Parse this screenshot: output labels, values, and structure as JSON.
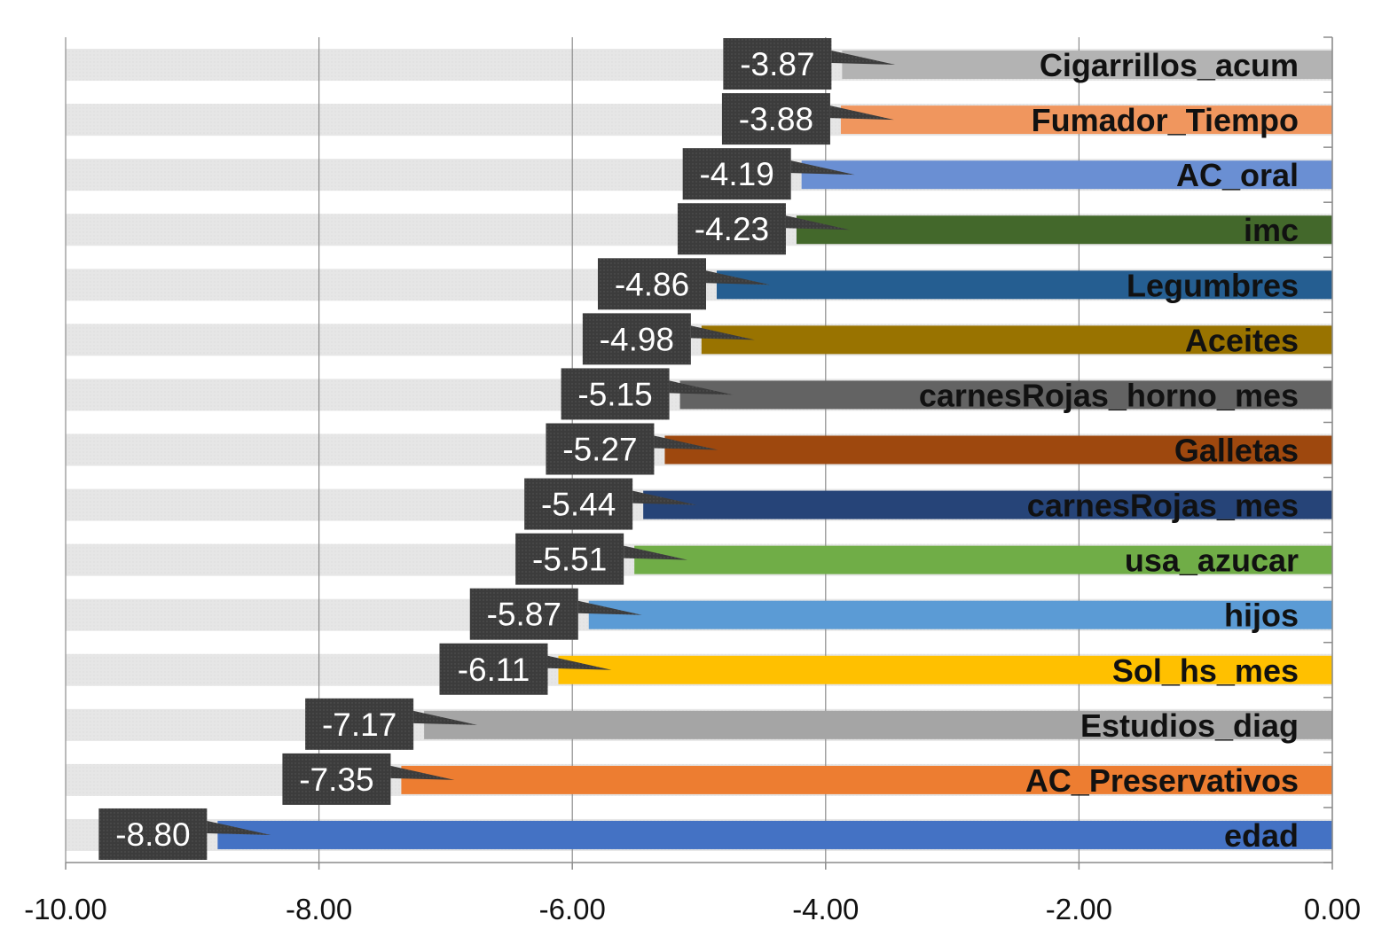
{
  "chart_data": {
    "type": "bar",
    "orientation": "horizontal",
    "title": "",
    "xlabel": "",
    "ylabel": "",
    "xlim": [
      -10,
      0
    ],
    "x_ticks": [
      "-10.00",
      "-8.00",
      "-6.00",
      "-4.00",
      "-2.00",
      "0.00"
    ],
    "grid": true,
    "legend": "none",
    "categories": [
      "Cigarrillos_acum",
      "Fumador_Tiempo",
      "AC_oral",
      "imc",
      "Legumbres",
      "Aceites",
      "carnesRojas_horno_mes",
      "Galletas",
      "carnesRojas_mes",
      "usa_azucar",
      "hijos",
      "Sol_hs_mes",
      "Estudios_diag",
      "AC_Preservativos",
      "edad"
    ],
    "values": [
      -3.87,
      -3.88,
      -4.19,
      -4.23,
      -4.86,
      -4.98,
      -5.15,
      -5.27,
      -5.44,
      -5.51,
      -5.87,
      -6.11,
      -7.17,
      -7.35,
      -8.8
    ],
    "value_labels": [
      "-3.87",
      "-3.88",
      "-4.19",
      "-4.23",
      "-4.86",
      "-4.98",
      "-5.15",
      "-5.27",
      "-5.44",
      "-5.51",
      "-5.87",
      "-6.11",
      "-7.17",
      "-7.35",
      "-8.80"
    ],
    "colors": [
      "#b3b3b3",
      "#f0965e",
      "#6a8fd3",
      "#43682b",
      "#255e91",
      "#997300",
      "#636363",
      "#9e480e",
      "#264478",
      "#70ad47",
      "#5b9bd5",
      "#ffc000",
      "#a5a5a5",
      "#ed7d31",
      "#4472c4"
    ]
  }
}
